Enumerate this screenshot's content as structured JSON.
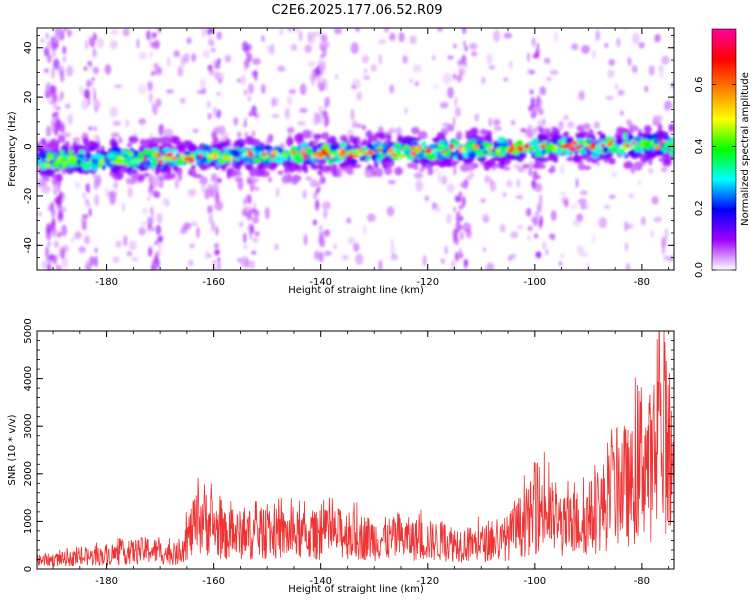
{
  "figure": {
    "title": "C2E6.2025.177.06.52.R09"
  },
  "chart_data": [
    {
      "type": "heatmap",
      "title": "C2E6.2025.177.06.52.R09",
      "xlabel": "Height of straight line (km)",
      "ylabel": "Frequency (Hz)",
      "xlim": [
        -193,
        -74
      ],
      "ylim": [
        -50,
        48
      ],
      "x_ticks": [
        -180,
        -160,
        -140,
        -120,
        -100,
        -80
      ],
      "y_ticks": [
        -40,
        -20,
        0,
        20,
        40
      ],
      "colorbar": {
        "label": "Normalized spectral amplitude",
        "range": [
          0,
          0.78
        ],
        "ticks": [
          0.0,
          0.2,
          0.4,
          0.6
        ],
        "colormap": [
          "#ffffff",
          "#a000ff",
          "#0000ff",
          "#00ffff",
          "#00ff00",
          "#ffff00",
          "#ff8000",
          "#ff0000",
          "#ff00a0"
        ]
      },
      "signal": {
        "description_free": true,
        "ridge_freq_at_start_hz": -6,
        "ridge_freq_at_end_hz": 1,
        "ridge_x_start_km": -193,
        "ridge_x_end_km": -74
      },
      "grid": false
    },
    {
      "type": "line",
      "title": "",
      "xlabel": "Height of straight line (km)",
      "ylabel": "SNR (10 * v/v)",
      "xlim": [
        -193,
        -74
      ],
      "ylim": [
        0,
        5000
      ],
      "x_ticks": [
        -180,
        -160,
        -140,
        -120,
        -100,
        -80
      ],
      "y_ticks": [
        0,
        1000,
        2000,
        3000,
        4000,
        5000
      ],
      "color": "#ee3333",
      "envelope": {
        "x": [
          -193,
          -185,
          -178,
          -172,
          -167,
          -164,
          -162,
          -158,
          -150,
          -142,
          -136,
          -130,
          -124,
          -118,
          -112,
          -106,
          -101,
          -99,
          -95,
          -90,
          -86,
          -84,
          -82,
          -80,
          -78,
          -76,
          -75,
          -74
        ],
        "y": [
          300,
          400,
          550,
          700,
          500,
          1400,
          1900,
          1200,
          1300,
          1200,
          1300,
          1100,
          1100,
          1000,
          900,
          1000,
          1800,
          2300,
          1500,
          1800,
          2500,
          3200,
          2900,
          4200,
          3600,
          5000,
          4600,
          3000
        ]
      },
      "grid": false
    }
  ]
}
